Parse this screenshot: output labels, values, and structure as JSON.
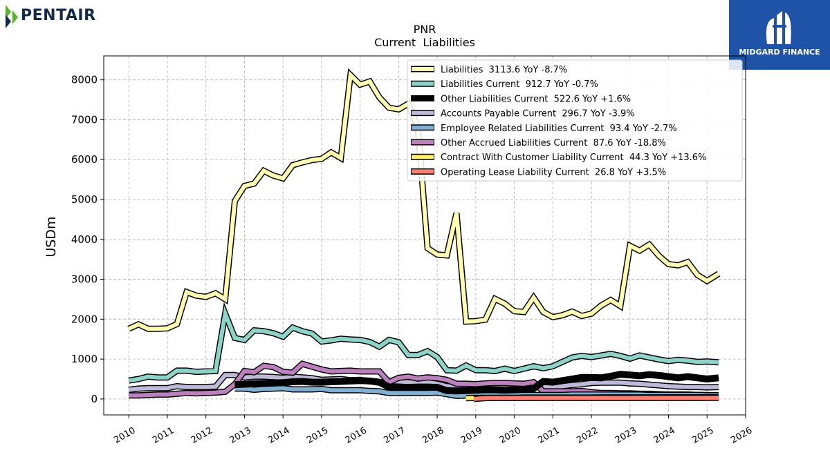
{
  "branding": {
    "left_logo_text": "PENTAIR",
    "right_logo_text": "MIDGARD FINANCE",
    "left_logo_color": "#13294b",
    "left_logo_accent": "#5ab031",
    "right_logo_bg": "#1f53a8"
  },
  "chart_data": {
    "type": "line",
    "title": "PNR",
    "subtitle": "Current  Liabilities",
    "ylabel": "USDm",
    "xlabel": "",
    "xlim": [
      2009.35,
      2026.0
    ],
    "ylim": [
      -400,
      8600
    ],
    "yticks": [
      0,
      1000,
      2000,
      3000,
      4000,
      5000,
      6000,
      7000,
      8000
    ],
    "xticks": [
      "2010",
      "2011",
      "2012",
      "2013",
      "2014",
      "2015",
      "2016",
      "2017",
      "2018",
      "2019",
      "2020",
      "2021",
      "2022",
      "2023",
      "2024",
      "2025",
      "2026"
    ],
    "grid": true,
    "legend_position": "top-right",
    "series": [
      {
        "name": "Liabilities  3113.6 YoY -8.7%",
        "color": "#ffffb3",
        "x": [
          2010.0,
          2010.25,
          2010.5,
          2010.75,
          2011.0,
          2011.25,
          2011.5,
          2011.75,
          2012.0,
          2012.25,
          2012.5,
          2012.75,
          2013.0,
          2013.25,
          2013.5,
          2013.75,
          2014.0,
          2014.25,
          2014.5,
          2014.75,
          2015.0,
          2015.25,
          2015.5,
          2015.75,
          2016.0,
          2016.25,
          2016.5,
          2016.75,
          2017.0,
          2017.25,
          2017.5,
          2017.75,
          2018.0,
          2018.25,
          2018.5,
          2018.75,
          2019.0,
          2019.25,
          2019.5,
          2019.75,
          2020.0,
          2020.25,
          2020.5,
          2020.75,
          2021.0,
          2021.25,
          2021.5,
          2021.75,
          2022.0,
          2022.25,
          2022.5,
          2022.75,
          2023.0,
          2023.25,
          2023.5,
          2023.75,
          2024.0,
          2024.25,
          2024.5,
          2024.75,
          2025.0,
          2025.3
        ],
        "values": [
          1760,
          1870,
          1760,
          1760,
          1770,
          1880,
          2680,
          2590,
          2560,
          2650,
          2500,
          4960,
          5340,
          5400,
          5720,
          5600,
          5530,
          5860,
          5930,
          5990,
          6020,
          6180,
          6040,
          8120,
          7880,
          7960,
          7560,
          7300,
          7260,
          7400,
          6800,
          3780,
          3620,
          3600,
          4660,
          1940,
          1950,
          1990,
          2510,
          2390,
          2200,
          2180,
          2540,
          2180,
          2050,
          2100,
          2190,
          2080,
          2140,
          2340,
          2480,
          2330,
          3840,
          3720,
          3870,
          3590,
          3380,
          3350,
          3430,
          3110,
          2960,
          3140
        ]
      },
      {
        "name": "Liabilities Current  912.7 YoY -0.7%",
        "color": "#8dd3c7",
        "x": [
          2010.0,
          2010.25,
          2010.5,
          2010.75,
          2011.0,
          2011.25,
          2011.5,
          2011.75,
          2012.0,
          2012.25,
          2012.5,
          2012.75,
          2013.0,
          2013.25,
          2013.5,
          2013.75,
          2014.0,
          2014.25,
          2014.5,
          2014.75,
          2015.0,
          2015.25,
          2015.5,
          2015.75,
          2016.0,
          2016.25,
          2016.5,
          2016.75,
          2017.0,
          2017.25,
          2017.5,
          2017.75,
          2018.0,
          2018.25,
          2018.5,
          2018.75,
          2019.0,
          2019.25,
          2019.5,
          2019.75,
          2020.0,
          2020.25,
          2020.5,
          2020.75,
          2021.0,
          2021.25,
          2021.5,
          2021.75,
          2022.0,
          2022.25,
          2022.5,
          2022.75,
          2023.0,
          2023.25,
          2023.5,
          2023.75,
          2024.0,
          2024.25,
          2024.5,
          2024.75,
          2025.0,
          2025.3
        ],
        "values": [
          460,
          500,
          560,
          540,
          540,
          710,
          710,
          680,
          690,
          700,
          2140,
          1530,
          1480,
          1720,
          1700,
          1650,
          1560,
          1790,
          1700,
          1640,
          1440,
          1470,
          1510,
          1490,
          1480,
          1430,
          1310,
          1480,
          1420,
          1100,
          1100,
          1200,
          1050,
          720,
          710,
          840,
          720,
          720,
          700,
          760,
          700,
          760,
          820,
          770,
          820,
          930,
          1040,
          1080,
          1050,
          1090,
          1130,
          1080,
          1010,
          1090,
          1040,
          990,
          950,
          980,
          960,
          930,
          940,
          920
        ]
      },
      {
        "name": "Other Liabilities Current  522.6 YoY +1.6%",
        "color": "#000000",
        "x": [
          2012.75,
          2013.0,
          2013.25,
          2013.5,
          2013.75,
          2014.0,
          2014.25,
          2014.5,
          2014.75,
          2015.0,
          2015.25,
          2015.5,
          2015.75,
          2016.0,
          2016.25,
          2016.5,
          2016.75,
          2017.0,
          2017.25,
          2017.5,
          2017.75,
          2018.0,
          2018.25,
          2018.5,
          2018.75,
          2019.0,
          2019.25,
          2019.5,
          2019.75,
          2020.0,
          2020.25,
          2020.5,
          2020.75,
          2021.0,
          2021.25,
          2021.5,
          2021.75,
          2022.0,
          2022.25,
          2022.5,
          2022.75,
          2023.0,
          2023.25,
          2023.5,
          2023.75,
          2024.0,
          2024.25,
          2024.5,
          2024.75,
          2025.0,
          2025.3
        ],
        "values": [
          360,
          370,
          380,
          390,
          400,
          410,
          430,
          440,
          420,
          420,
          430,
          440,
          450,
          460,
          450,
          420,
          300,
          300,
          290,
          300,
          300,
          290,
          210,
          200,
          210,
          220,
          230,
          230,
          220,
          230,
          240,
          260,
          440,
          420,
          460,
          500,
          540,
          540,
          530,
          570,
          620,
          600,
          580,
          610,
          590,
          560,
          530,
          560,
          530,
          500,
          530
        ]
      },
      {
        "name": "Accounts Payable Current  296.7 YoY -3.9%",
        "color": "#bebada",
        "x": [
          2010.0,
          2010.25,
          2010.5,
          2010.75,
          2011.0,
          2011.25,
          2011.5,
          2011.75,
          2012.0,
          2012.25,
          2012.5,
          2012.75,
          2013.0,
          2013.25,
          2013.5,
          2013.75,
          2014.0,
          2014.25,
          2014.5,
          2014.75,
          2015.0,
          2015.25,
          2015.5,
          2015.75,
          2016.0,
          2016.25,
          2016.5,
          2016.75,
          2017.0,
          2017.25,
          2017.5,
          2017.75,
          2018.0,
          2018.25,
          2018.5,
          2018.75,
          2019.0,
          2019.25,
          2019.5,
          2019.75,
          2020.0,
          2020.25,
          2020.5,
          2020.75,
          2021.0,
          2021.25,
          2021.5,
          2021.75,
          2022.0,
          2022.25,
          2022.5,
          2022.75,
          2023.0,
          2023.25,
          2023.5,
          2023.75,
          2024.0,
          2024.25,
          2024.5,
          2024.75,
          2025.0,
          2025.3
        ],
        "values": [
          230,
          260,
          270,
          270,
          270,
          320,
          300,
          300,
          300,
          310,
          600,
          600,
          540,
          560,
          560,
          550,
          530,
          560,
          540,
          520,
          480,
          490,
          500,
          470,
          480,
          450,
          410,
          450,
          440,
          420,
          400,
          420,
          380,
          320,
          300,
          310,
          290,
          280,
          280,
          270,
          270,
          280,
          300,
          310,
          300,
          320,
          350,
          370,
          400,
          410,
          410,
          410,
          390,
          380,
          360,
          340,
          320,
          310,
          300,
          300,
          290,
          300
        ]
      },
      {
        "name": "Employee Related Liabilities Current  93.4 YoY -2.7%",
        "color": "#80b1d3",
        "x": [
          2012.75,
          2013.0,
          2013.25,
          2013.5,
          2013.75,
          2014.0,
          2014.25,
          2014.5,
          2014.75,
          2015.0,
          2015.25,
          2015.5,
          2015.75,
          2016.0,
          2016.25,
          2016.5,
          2016.75,
          2017.0,
          2017.25,
          2017.5,
          2017.75,
          2018.0,
          2018.25,
          2018.5,
          2018.75,
          2019.0,
          2019.25,
          2019.5,
          2019.75,
          2020.0,
          2020.25,
          2020.5,
          2020.75,
          2021.0,
          2021.25,
          2021.5,
          2021.75,
          2022.0,
          2022.25,
          2022.5,
          2022.75,
          2023.0,
          2023.25,
          2023.5,
          2023.75,
          2024.0,
          2024.25,
          2024.5,
          2024.75,
          2025.0,
          2025.3
        ],
        "values": [
          260,
          260,
          230,
          250,
          260,
          270,
          240,
          240,
          240,
          250,
          220,
          220,
          220,
          220,
          200,
          190,
          150,
          150,
          150,
          150,
          150,
          160,
          120,
          80,
          90,
          100,
          100,
          100,
          90,
          100,
          100,
          100,
          100,
          100,
          100,
          110,
          110,
          110,
          110,
          110,
          110,
          110,
          110,
          100,
          100,
          100,
          100,
          100,
          100,
          95,
          95
        ]
      },
      {
        "name": "Other Accrued Liabilities Current  87.6 YoY -18.8%",
        "color": "#bc80bd",
        "x": [
          2010.0,
          2010.25,
          2010.5,
          2010.75,
          2011.0,
          2011.25,
          2011.5,
          2011.75,
          2012.0,
          2012.25,
          2012.5,
          2012.75,
          2013.0,
          2013.25,
          2013.5,
          2013.75,
          2014.0,
          2014.25,
          2014.5,
          2014.75,
          2015.0,
          2015.25,
          2015.5,
          2015.75,
          2016.0,
          2016.25,
          2016.5,
          2016.75,
          2017.0,
          2017.25,
          2017.5,
          2017.75,
          2018.0,
          2018.25,
          2018.5,
          2018.75,
          2019.0,
          2019.25,
          2019.5,
          2019.75,
          2020.0,
          2020.25,
          2020.5,
          2020.75,
          2021.0,
          2021.25,
          2021.5,
          2021.75,
          2022.0,
          2022.25,
          2022.5,
          2022.75,
          2023.0,
          2023.25,
          2023.5,
          2023.75,
          2024.0,
          2024.25,
          2024.5,
          2024.75,
          2025.0,
          2025.3
        ],
        "values": [
          90,
          90,
          100,
          110,
          110,
          130,
          150,
          140,
          150,
          160,
          180,
          370,
          700,
          670,
          830,
          800,
          680,
          660,
          880,
          810,
          740,
          690,
          700,
          710,
          690,
          690,
          690,
          420,
          530,
          560,
          510,
          540,
          520,
          480,
          380,
          380,
          370,
          390,
          400,
          400,
          390,
          380,
          420,
          190,
          190,
          190,
          190,
          200,
          170,
          150,
          150,
          140,
          140,
          130,
          130,
          120,
          110,
          110,
          110,
          100,
          95,
          90
        ]
      },
      {
        "name": "Contract With Customer Liability Current  44.3 YoY +13.6%",
        "color": "#ffed6f",
        "x": [
          2018.75,
          2019.0,
          2019.25,
          2019.5,
          2019.75,
          2020.0,
          2020.25,
          2020.5,
          2020.75,
          2021.0,
          2021.25,
          2021.5,
          2021.75,
          2022.0,
          2022.25,
          2022.5,
          2022.75,
          2023.0,
          2023.25,
          2023.5,
          2023.75,
          2024.0,
          2024.25,
          2024.5,
          2024.75,
          2025.0,
          2025.3
        ],
        "values": [
          20,
          25,
          30,
          30,
          30,
          30,
          35,
          35,
          35,
          35,
          35,
          35,
          35,
          35,
          40,
          40,
          40,
          40,
          40,
          40,
          40,
          42,
          42,
          42,
          42,
          44,
          44
        ]
      },
      {
        "name": "Operating Lease Liability Current  26.8 YoY +3.5%",
        "color": "#fb8072",
        "x": [
          2018.95,
          2019.25,
          2019.5,
          2019.75,
          2020.0,
          2020.25,
          2020.5,
          2020.75,
          2021.0,
          2021.25,
          2021.5,
          2021.75,
          2022.0,
          2022.25,
          2022.5,
          2022.75,
          2023.0,
          2023.25,
          2023.5,
          2023.75,
          2024.0,
          2024.25,
          2024.5,
          2024.75,
          2025.0,
          2025.3
        ],
        "values": [
          0,
          22,
          24,
          24,
          24,
          25,
          25,
          25,
          25,
          25,
          25,
          25,
          25,
          26,
          26,
          26,
          26,
          26,
          26,
          26,
          26,
          26,
          26,
          26,
          27,
          27
        ]
      }
    ]
  }
}
